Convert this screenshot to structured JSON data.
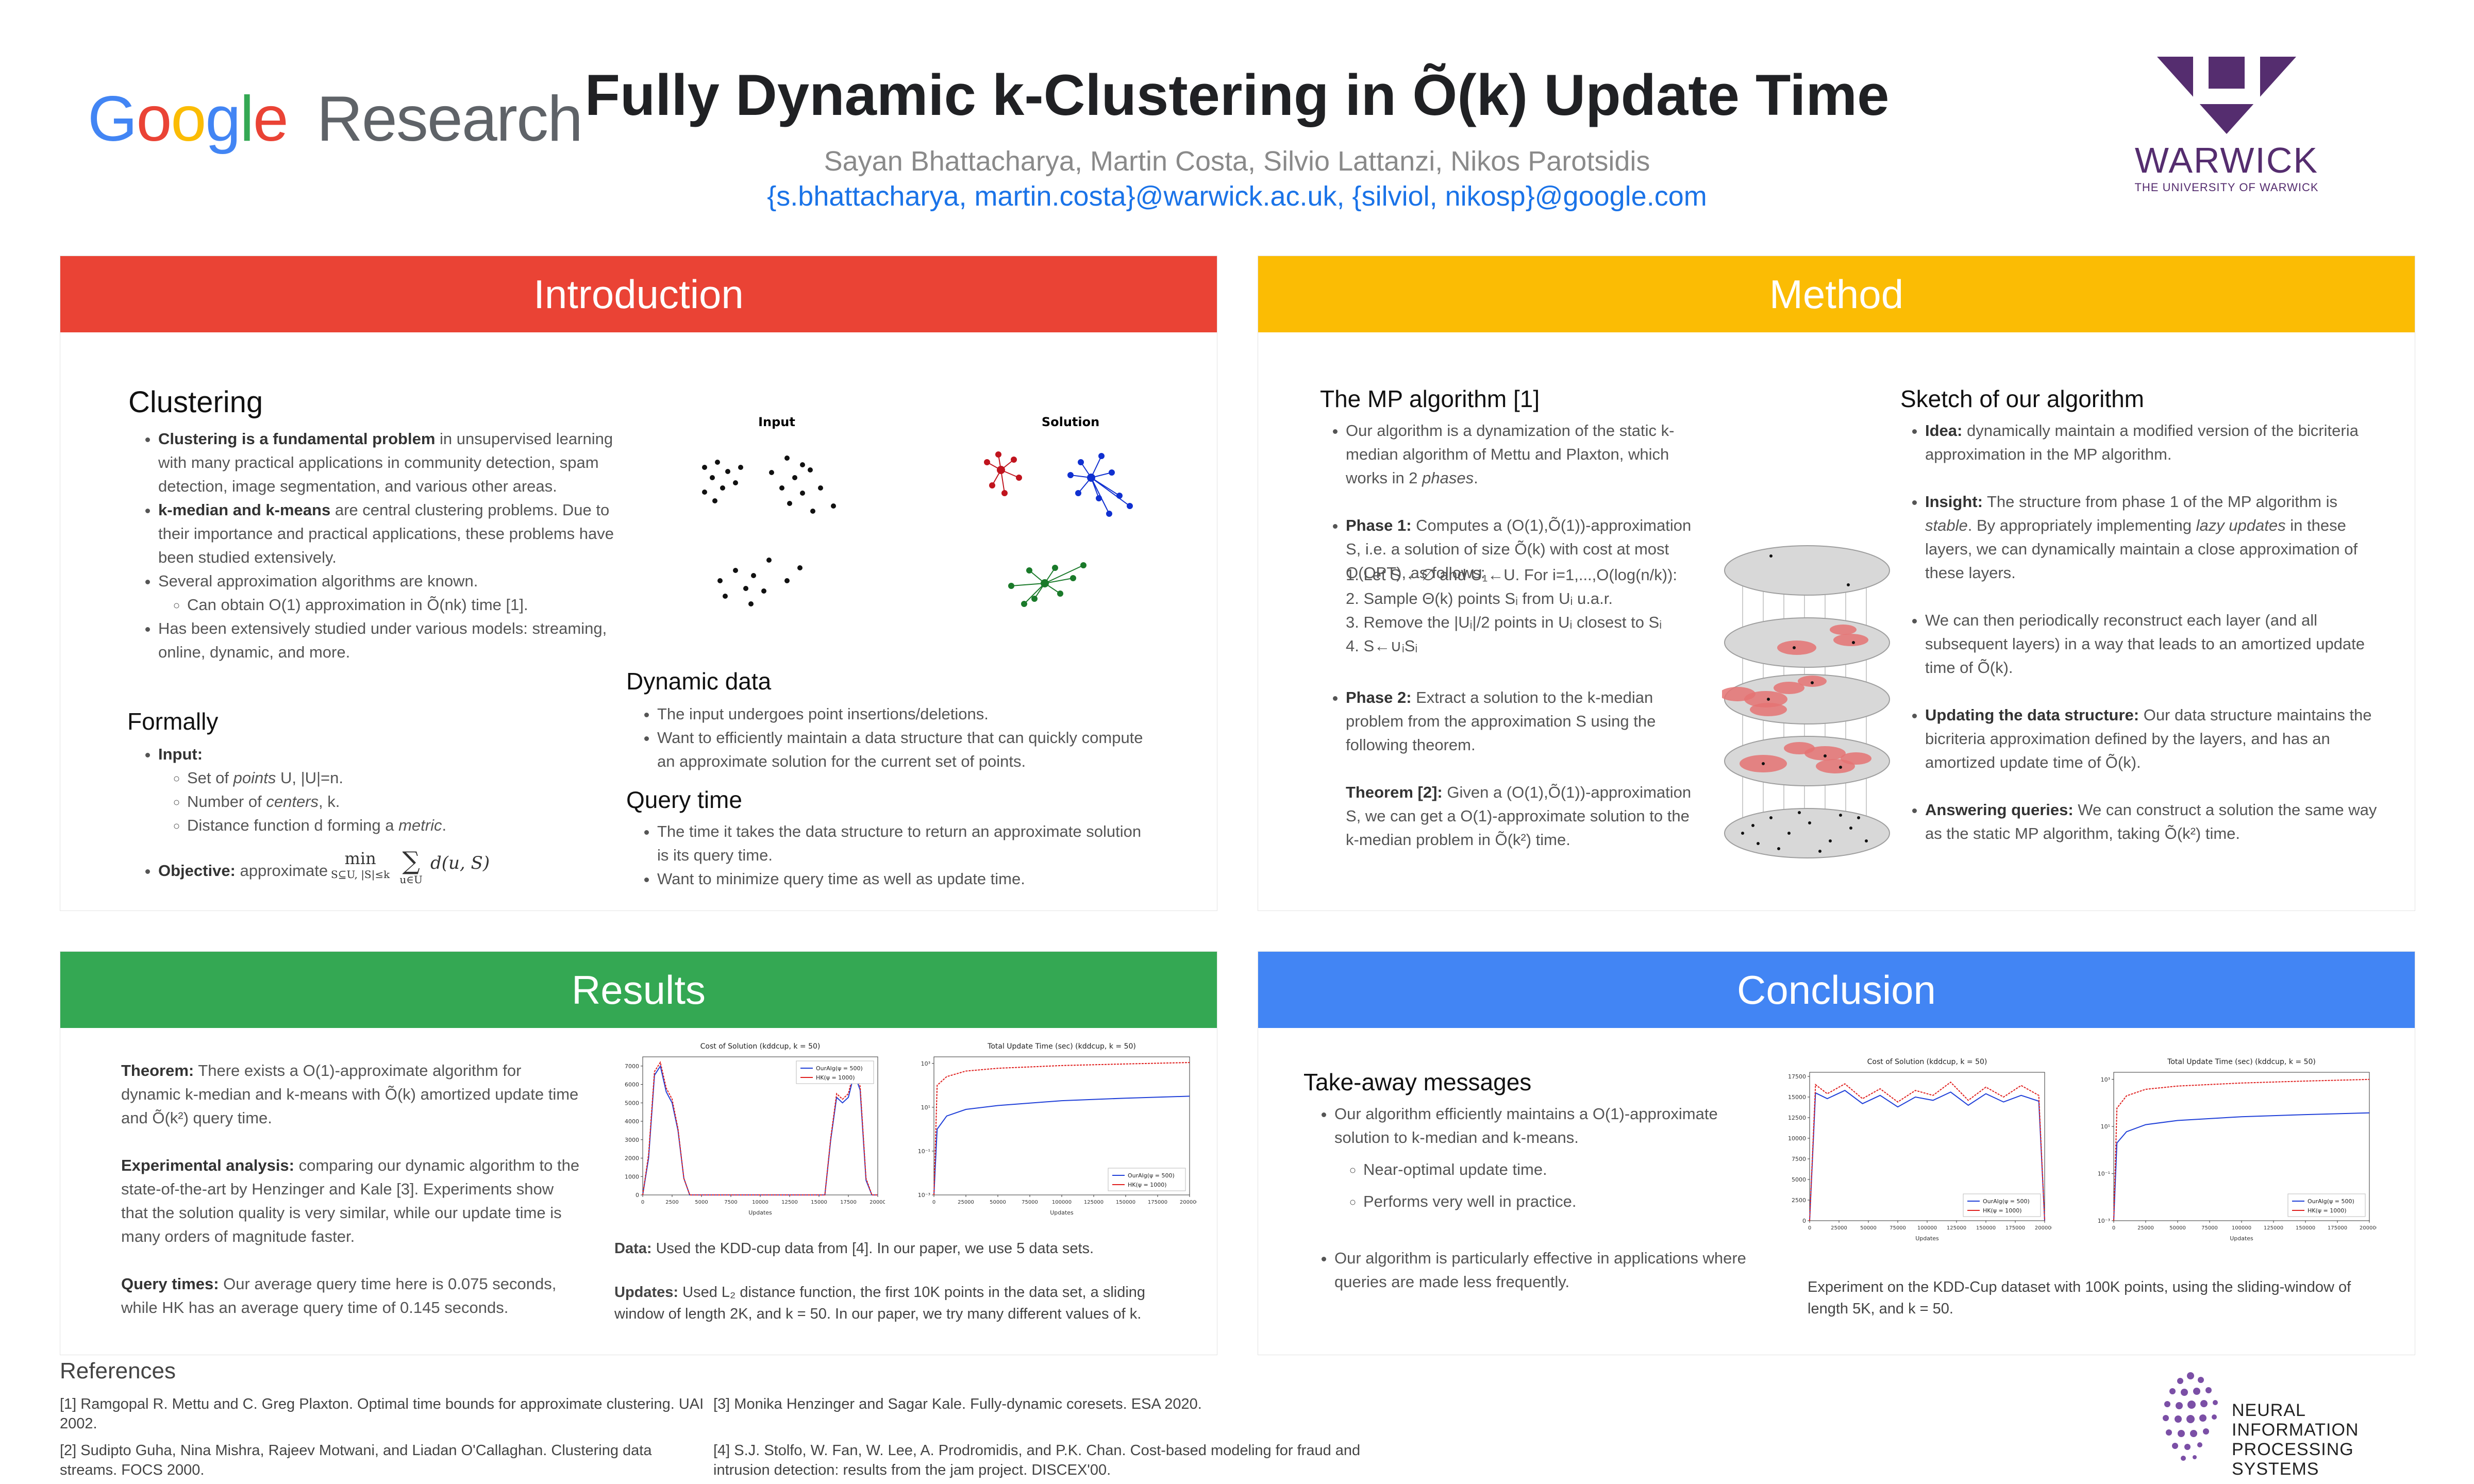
{
  "header": {
    "google_logo": "Google",
    "google_research": "Research",
    "title": "Fully Dynamic k-Clustering in Õ(k) Update Time",
    "authors": "Sayan Bhattacharya, Martin Costa, Silvio Lattanzi, Nikos Parotsidis",
    "emails": "{s.bhattacharya, martin.costa}@warwick.ac.uk, {silviol, nikosp}@google.com",
    "warwick": "WARWICK",
    "warwick_sub": "THE UNIVERSITY OF WARWICK"
  },
  "colors": {
    "intro": "#ea4335",
    "method": "#fbbc04",
    "results": "#34a853",
    "conclusion": "#4285f4",
    "warwick": "#552d6f"
  },
  "intro": {
    "bar": "Introduction",
    "clustering_h": "Clustering",
    "b1_bold": "Clustering is a fundamental problem",
    "b1_rest": " in unsupervised learning with many practical applications in community detection, spam detection, image segmentation, and various other areas.",
    "b2_bold": "k-median and k-means",
    "b2_rest": " are central clustering problems. Due to their importance and practical applications, these problems have been studied extensively.",
    "b3": "Several approximation algorithms are known.",
    "b3a": "Can obtain O(1) approximation in Õ(nk) time [1].",
    "b4": "Has been extensively studied under various models: streaming, online, dynamic, and more.",
    "formally_h": "Formally",
    "input_label": "Input:",
    "input1_a": "Set of ",
    "input1_i": "points",
    "input1_b": " U, |U|=n.",
    "input2_a": "Number of ",
    "input2_i": "centers",
    "input2_b": ", k.",
    "input3_a": "Distance function d forming a ",
    "input3_i": "metric",
    "input3_b": ".",
    "objective_label": "Objective:",
    "objective_rest": " approximate",
    "objective_min": "min",
    "objective_sub": "S⊆U, |S|≤k",
    "objective_sum": "∑",
    "objective_sum_sub": "u∈U",
    "objective_expr": "d(u, S)",
    "fig_input": "Input",
    "fig_solution": "Solution",
    "dynamic_h": "Dynamic data",
    "d1": "The input undergoes point insertions/deletions.",
    "d2": "Want to efficiently maintain a data structure that can quickly compute an approximate solution for the current set of points.",
    "query_h": "Query time",
    "q1": "The time it takes the data structure to return an approximate solution is its query time.",
    "q2": "Want to minimize query time as well as update time."
  },
  "method": {
    "bar": "Method",
    "mp_h": "The MP algorithm [1]",
    "m1_a": "Our algorithm is a dynamization of the static k-median algorithm of Mettu and Plaxton, which works in 2 ",
    "m1_i": "phases",
    "m1_b": ".",
    "p1_bold": "Phase 1:",
    "p1_rest": " Computes a (O(1),Õ(1))-approximation S, i.e. a solution of size Õ(k) with cost at most O(OPT), as follows:",
    "s1": "1. Let S ←∅ and U₁←U. For i=1,...,O(log(n/k)):",
    "s2": "2. Sample Θ(k) points Sᵢ from Uᵢ u.a.r.",
    "s3": "3. Remove the |Uᵢ|/2 points in Uᵢ closest to Sᵢ",
    "s4": "4. S←∪ᵢSᵢ",
    "p2_bold": "Phase 2:",
    "p2_rest": " Extract a solution to the k-median problem from the approximation S using the following theorem.",
    "th_bold": "Theorem [2]:",
    "th_rest": " Given a (O(1),Õ(1))-approximation S, we can get a O(1)-approximate solution to the k-median problem in Õ(k²) time.",
    "sketch_h": "Sketch of our algorithm",
    "idea_bold": "Idea:",
    "idea_rest": " dynamically maintain a modified version of the bicriteria approximation in the MP algorithm.",
    "ins_bold": "Insight:",
    "ins_a": " The structure from phase 1 of the MP algorithm is ",
    "ins_i1": "stable",
    "ins_b": ". By appropriately implementing ",
    "ins_i2": "lazy updates",
    "ins_c": " in these layers, we can dynamically maintain a close approximation of these layers.",
    "recon": "We can then periodically reconstruct each layer (and all subsequent layers) in a way that leads to an amortized update time of Õ(k).",
    "upd_bold": "Updating the data structure:",
    "upd_rest": " Our data structure maintains the bicriteria approximation defined by the layers, and has an amortized update time of Õ(k).",
    "ans_bold": "Answering queries:",
    "ans_rest": " We can construct a solution the same way as the static MP algorithm, taking Õ(k²) time."
  },
  "results": {
    "bar": "Results",
    "th_bold": "Theorem:",
    "th_rest": " There exists a O(1)-approximate algorithm for dynamic k-median and k-means with Õ(k) amortized update time and Õ(k²) query time.",
    "exp_bold": "Experimental analysis:",
    "exp_rest": " comparing our dynamic algorithm to the state-of-the-art by Henzinger and Kale [3]. Experiments show that the solution quality is very similar, while our update time is many orders of magnitude faster.",
    "qt_bold": "Query times:",
    "qt_rest": " Our average query time here is 0.075 seconds, while HK has an average query time of 0.145 seconds.",
    "data_bold": "Data:",
    "data_rest": " Used the KDD-cup data from [4]. In our paper, we use 5 data sets.",
    "upd_bold": "Updates:",
    "upd_rest": " Used L₂ distance function, the first 10K points in the data set, a sliding window of length 2K, and k = 50. In our paper, we try many different values of k."
  },
  "conclusion": {
    "bar": "Conclusion",
    "take_h": "Take-away messages",
    "c1": "Our algorithm efficiently maintains a O(1)-approximate solution to k-median and k-means.",
    "c1a": "Near-optimal update time.",
    "c1b": "Performs very well in practice.",
    "c2": "Our algorithm is particularly effective in applications where queries are made less frequently.",
    "caption": "Experiment on the KDD-Cup dataset with 100K points, using the sliding-window of length 5K, and k = 50."
  },
  "references": {
    "heading": "References",
    "r1": "[1] Ramgopal R. Mettu and C. Greg Plaxton. Optimal time bounds for approximate clustering. UAI 2002.",
    "r2": "[2] Sudipto Guha, Nina Mishra, Rajeev Motwani, and Liadan O'Callaghan. Clustering data streams. FOCS 2000.",
    "r3": "[3] Monika Henzinger and Sagar Kale. Fully-dynamic coresets. ESA 2020.",
    "r4": "[4] S.J. Stolfo, W. Fan, W. Lee, A. Prodromidis, and P.K. Chan. Cost-based modeling for fraud and intrusion detection: results from the jam project. DISCEX'00."
  },
  "neurips": {
    "line1": "NEURAL INFORMATION",
    "line2": "PROCESSING SYSTEMS"
  },
  "chart_data": [
    {
      "type": "line",
      "title": "Cost of Solution (kddcup, k = 50)",
      "xlabel": "Updates",
      "ylabel": "",
      "xlim": [
        0,
        20000
      ],
      "ylim": [
        0,
        7500
      ],
      "yticks": [
        "0",
        "1000",
        "2000",
        "3000",
        "4000",
        "5000",
        "6000",
        "7000"
      ],
      "xticks": [
        "0",
        "2500",
        "5000",
        "7500",
        "10000",
        "12500",
        "15000",
        "17500",
        "20000"
      ],
      "legend": "top-right",
      "series": [
        {
          "name": "OurAlg(ψ = 500)",
          "color": "#1f3fd8",
          "x": [
            0,
            500,
            1000,
            1500,
            2000,
            2500,
            3000,
            3500,
            4000,
            5000,
            7500,
            10000,
            12500,
            15500,
            16000,
            16500,
            17000,
            17500,
            18000,
            18500,
            19000,
            19500,
            20000
          ],
          "values": [
            0,
            2000,
            6500,
            7000,
            5600,
            5000,
            3500,
            900,
            0,
            0,
            0,
            0,
            0,
            0,
            3000,
            5300,
            5000,
            5300,
            6600,
            5700,
            800,
            0,
            0
          ]
        },
        {
          "name": "HK(ψ = 1000)",
          "color": "#e0201f",
          "x": [
            0,
            500,
            1000,
            1500,
            2000,
            2500,
            3000,
            3500,
            4000,
            5000,
            7500,
            10000,
            12500,
            15500,
            16000,
            16500,
            17000,
            17500,
            18000,
            18500,
            19000,
            19500,
            20000
          ],
          "values": [
            0,
            2200,
            6700,
            7200,
            5800,
            5200,
            3600,
            900,
            0,
            0,
            0,
            0,
            0,
            0,
            3100,
            5500,
            5200,
            5500,
            6800,
            5900,
            900,
            0,
            0
          ]
        }
      ]
    },
    {
      "type": "line",
      "title": "Total Update Time (sec) (kddcup, k = 50)",
      "xlabel": "Updates",
      "ylabel": "",
      "log_y": true,
      "xlim": [
        0,
        200000
      ],
      "ylim": [
        0.001,
        2000
      ],
      "yticks": [
        "10⁻³",
        "10⁻¹",
        "10¹",
        "10³"
      ],
      "xticks": [
        "0",
        "25000",
        "50000",
        "75000",
        "100000",
        "125000",
        "150000",
        "175000",
        "200000"
      ],
      "legend": "bottom-right",
      "series": [
        {
          "name": "OurAlg(ψ = 500)",
          "color": "#1f3fd8",
          "x": [
            0,
            2500,
            10000,
            25000,
            50000,
            100000,
            150000,
            200000
          ],
          "values": [
            0.001,
            1,
            4,
            8,
            12,
            20,
            26,
            32
          ]
        },
        {
          "name": "HK(ψ = 1000)",
          "color": "#e0201f",
          "x": [
            0,
            2500,
            10000,
            25000,
            50000,
            100000,
            150000,
            200000
          ],
          "values": [
            0.001,
            100,
            250,
            450,
            600,
            800,
            950,
            1100
          ]
        }
      ]
    },
    {
      "type": "line",
      "title": "Cost of Solution (kddcup, k = 50)",
      "xlabel": "Updates",
      "ylabel": "",
      "xlim": [
        0,
        200000
      ],
      "ylim": [
        0,
        18000
      ],
      "yticks": [
        "0",
        "2500",
        "5000",
        "7500",
        "10000",
        "12500",
        "15000",
        "17500"
      ],
      "xticks": [
        "0",
        "25000",
        "50000",
        "75000",
        "100000",
        "125000",
        "150000",
        "175000",
        "200000"
      ],
      "legend": "bottom-right",
      "series": [
        {
          "name": "OurAlg(ψ = 500)",
          "color": "#1f3fd8",
          "x": [
            0,
            5000,
            15000,
            30000,
            45000,
            60000,
            75000,
            90000,
            105000,
            120000,
            135000,
            150000,
            165000,
            180000,
            195000,
            200000
          ],
          "values": [
            0,
            15500,
            14800,
            15800,
            14200,
            15200,
            13800,
            15000,
            14600,
            15600,
            14000,
            15400,
            14400,
            15200,
            14500,
            0
          ]
        },
        {
          "name": "HK(ψ = 1000)",
          "color": "#e0201f",
          "x": [
            0,
            5000,
            15000,
            30000,
            45000,
            60000,
            75000,
            90000,
            105000,
            120000,
            135000,
            150000,
            165000,
            180000,
            195000,
            200000
          ],
          "values": [
            0,
            16500,
            15400,
            16600,
            14800,
            16000,
            14400,
            15800,
            15200,
            16800,
            14600,
            16200,
            15000,
            16400,
            15200,
            0
          ]
        }
      ]
    },
    {
      "type": "line",
      "title": "Total Update Time (sec) (kddcup, k = 50)",
      "xlabel": "Updates",
      "ylabel": "",
      "log_y": true,
      "xlim": [
        0,
        200000
      ],
      "ylim": [
        0.001,
        2000
      ],
      "yticks": [
        "10⁻³",
        "10⁻¹",
        "10¹",
        "10³"
      ],
      "xticks": [
        "0",
        "25000",
        "50000",
        "75000",
        "100000",
        "125000",
        "150000",
        "175000",
        "200000"
      ],
      "legend": "bottom-right",
      "series": [
        {
          "name": "OurAlg(ψ = 500)",
          "color": "#1f3fd8",
          "x": [
            0,
            2500,
            10000,
            25000,
            50000,
            100000,
            150000,
            200000
          ],
          "values": [
            0.001,
            2,
            6,
            12,
            18,
            26,
            32,
            38
          ]
        },
        {
          "name": "HK(ψ = 1000)",
          "color": "#e0201f",
          "x": [
            0,
            2500,
            10000,
            25000,
            50000,
            100000,
            150000,
            200000
          ],
          "values": [
            0.001,
            60,
            200,
            380,
            520,
            700,
            850,
            1000
          ]
        }
      ]
    }
  ]
}
